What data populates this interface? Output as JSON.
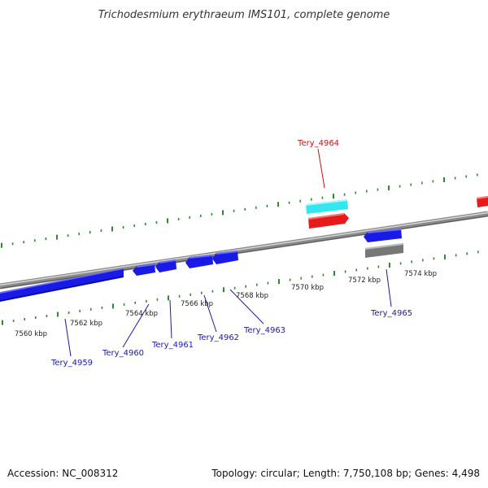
{
  "title": "Trichodesmium erythraeum IMS101, complete genome",
  "footer": {
    "accession": "Accession: NC_008312",
    "summary": "Topology: circular; Length: 7,750,108 bp; Genes: 4,498"
  },
  "colors": {
    "backbone": "#8a8a8a",
    "tick": "#2d8a2d",
    "gene_blue": "#1a1ae6",
    "gene_red": "#e61a1a",
    "gene_cyan": "#33e6f0",
    "gene_gray": "#777777",
    "label_blue": "#1a1aaa",
    "label_red": "#cc1111",
    "leader": "#1a1aaa"
  },
  "scale_labels": [
    "7560 kbp",
    "7562 kbp",
    "7564 kbp",
    "7566 kbp",
    "7568 kbp",
    "7570 kbp",
    "7572 kbp",
    "7574 kbp"
  ],
  "gene_labels": [
    {
      "name": "Tery_4959",
      "color": "blue"
    },
    {
      "name": "Tery_4960",
      "color": "blue"
    },
    {
      "name": "Tery_4961",
      "color": "blue"
    },
    {
      "name": "Tery_4962",
      "color": "blue"
    },
    {
      "name": "Tery_4963",
      "color": "blue"
    },
    {
      "name": "Tery_4964",
      "color": "red"
    },
    {
      "name": "Tery_4965",
      "color": "blue"
    }
  ]
}
